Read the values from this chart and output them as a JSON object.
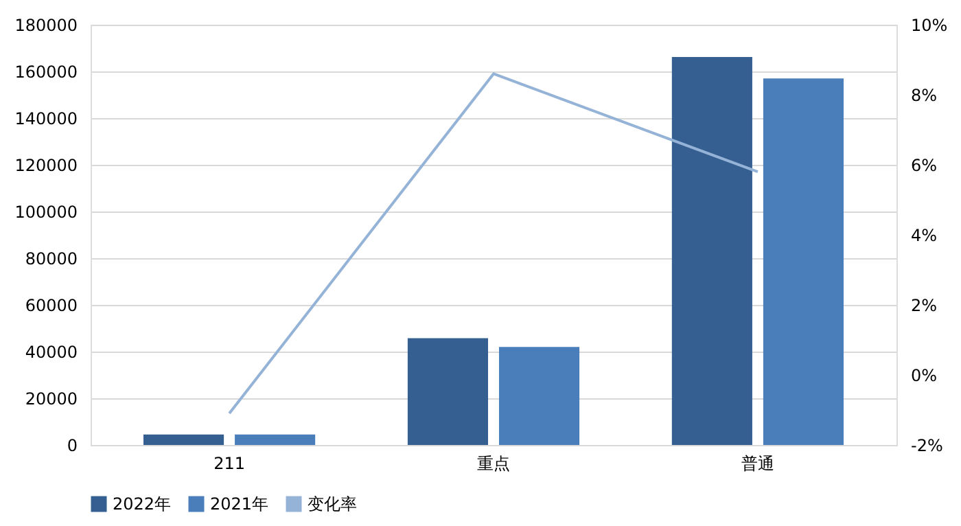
{
  "chart_data": {
    "type": "bar",
    "categories": [
      "211",
      "重点",
      "普通"
    ],
    "series": [
      {
        "name": "2022年",
        "color": "#355f91",
        "values": [
          4500,
          45700,
          166200
        ]
      },
      {
        "name": "2021年",
        "color": "#4a7ebb",
        "values": [
          4500,
          42000,
          157000
        ]
      },
      {
        "name": "变化率",
        "type": "line",
        "axis": "y2",
        "color": "#95b3d7",
        "values": [
          -1.1,
          8.6,
          5.8
        ]
      }
    ],
    "ylim": [
      0,
      180000
    ],
    "yticks": [
      0,
      20000,
      40000,
      60000,
      80000,
      100000,
      120000,
      140000,
      160000,
      180000
    ],
    "y2lim": [
      -2,
      10
    ],
    "y2ticks": [
      {
        "value": -2,
        "label": "-2%"
      },
      {
        "value": 0,
        "label": "0%"
      },
      {
        "value": 2,
        "label": "2%"
      },
      {
        "value": 4,
        "label": "4%"
      },
      {
        "value": 6,
        "label": "6%"
      },
      {
        "value": 8,
        "label": "8%"
      },
      {
        "value": 10,
        "label": "10%"
      }
    ],
    "grid": "y",
    "legend": "bottom",
    "marker": "none",
    "line_style": "solid"
  }
}
